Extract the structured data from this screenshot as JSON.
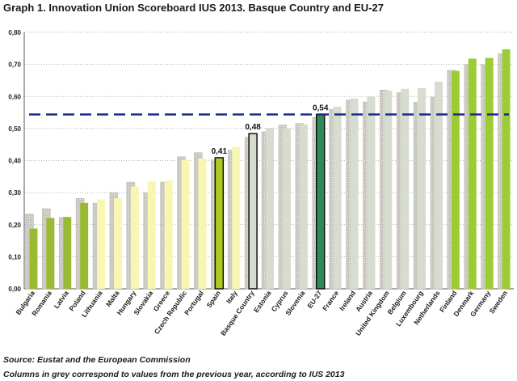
{
  "title": "Graph 1. Innovation Union Scoreboard IUS 2013. Basque Country and EU-27",
  "chart_data": {
    "type": "bar",
    "title": "Graph 1. Innovation Union Scoreboard IUS 2013. Basque Country and EU-27",
    "xlabel": "",
    "ylabel": "",
    "ylim": [
      0,
      0.8
    ],
    "yticks": [
      "0,00",
      "0,10",
      "0,20",
      "0,30",
      "0,40",
      "0,50",
      "0,60",
      "0,70",
      "0,80"
    ],
    "grid": true,
    "categories": [
      "Bulgaria",
      "Romania",
      "Latvia",
      "Poland",
      "Lithuania",
      "Malta",
      "Hungary",
      "Slovakia",
      "Greece",
      "Czech Republic",
      "Portugal",
      "Spain",
      "Italy",
      "Basque Country",
      "Estonia",
      "Cyprus",
      "Slovenia",
      "EU-27",
      "France",
      "Ireland",
      "Austria",
      "United Kingdom",
      "Belgium",
      "Luxembourg",
      "Netherlands",
      "Finland",
      "Denmark",
      "Germany",
      "Sweden"
    ],
    "series": [
      {
        "name": "Previous year (IUS 2012)",
        "color": "#c8c8c0",
        "values": [
          0.233,
          0.25,
          0.223,
          0.282,
          0.267,
          0.3,
          0.333,
          0.3,
          0.333,
          0.412,
          0.425,
          0.402,
          0.433,
          0.473,
          0.49,
          0.511,
          0.516,
          0.535,
          0.56,
          0.589,
          0.583,
          0.62,
          0.612,
          0.582,
          0.598,
          0.682,
          0.7,
          0.7,
          0.733
        ]
      },
      {
        "name": "IUS 2013",
        "color": "#9ccc33",
        "values": [
          0.188,
          0.221,
          0.224,
          0.268,
          0.279,
          0.282,
          0.319,
          0.337,
          0.338,
          0.402,
          0.406,
          0.409,
          0.443,
          0.484,
          0.502,
          0.501,
          0.513,
          0.544,
          0.568,
          0.594,
          0.599,
          0.618,
          0.624,
          0.626,
          0.646,
          0.68,
          0.718,
          0.72,
          0.747
        ],
        "point_colors": [
          "#99bb33",
          "#99bb33",
          "#99bb33",
          "#99bb33",
          "#f7f7b3",
          "#f7f7b3",
          "#f7f7b3",
          "#f7f7b3",
          "#f7f7b3",
          "#f7f7b3",
          "#f7f7b3",
          "#b0c820",
          "#f7f7b3",
          "#d6dcd0",
          "#d6dcd0",
          "#d6dcd0",
          "#d6dcd0",
          "#2e8b57",
          "#d6dcd0",
          "#d6dcd0",
          "#d6dcd0",
          "#d6dcd0",
          "#d6dcd0",
          "#d6dcd0",
          "#d6dcd0",
          "#9ccc33",
          "#9ccc33",
          "#9ccc33",
          "#9ccc33"
        ]
      }
    ],
    "reference_line": {
      "name": "EU-27 average",
      "value": 0.544,
      "color": "#1c2a8c",
      "style": "dashed"
    },
    "data_labels": [
      {
        "category": "Spain",
        "text": "0,41"
      },
      {
        "category": "Basque Country",
        "text": "0,48"
      },
      {
        "category": "EU-27",
        "text": "0,54"
      }
    ],
    "outlined_categories": [
      "Spain",
      "Basque Country",
      "EU-27"
    ]
  },
  "notes": {
    "source": "Source: Eustat and the European Commission",
    "grey_note": "Columns in grey correspond to values from the previous year, according to IUS 2013"
  }
}
